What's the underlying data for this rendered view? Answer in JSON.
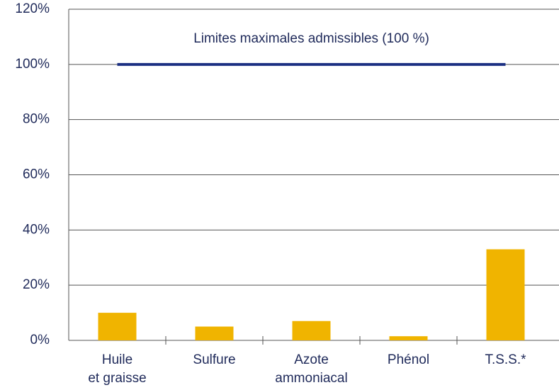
{
  "chart_data": {
    "type": "bar",
    "categories": [
      "Huile et graisse",
      "Sulfure",
      "Azote ammoniacal",
      "Phénol",
      "T.S.S.*"
    ],
    "values": [
      10,
      5,
      7,
      1.5,
      33
    ],
    "color": "#f0b400",
    "ylim": [
      0,
      120
    ],
    "yticks": [
      {
        "value": 0,
        "label": "0%"
      },
      {
        "value": 20,
        "label": "20%"
      },
      {
        "value": 40,
        "label": "40%"
      },
      {
        "value": 60,
        "label": "60%"
      },
      {
        "value": 80,
        "label": "80%"
      },
      {
        "value": 100,
        "label": "100%"
      },
      {
        "value": 120,
        "label": "120%"
      }
    ],
    "grid": true,
    "reference_line": {
      "value": 100,
      "label": "Limites maximales admissibles (100 %)",
      "color": "#1b2f82"
    }
  }
}
